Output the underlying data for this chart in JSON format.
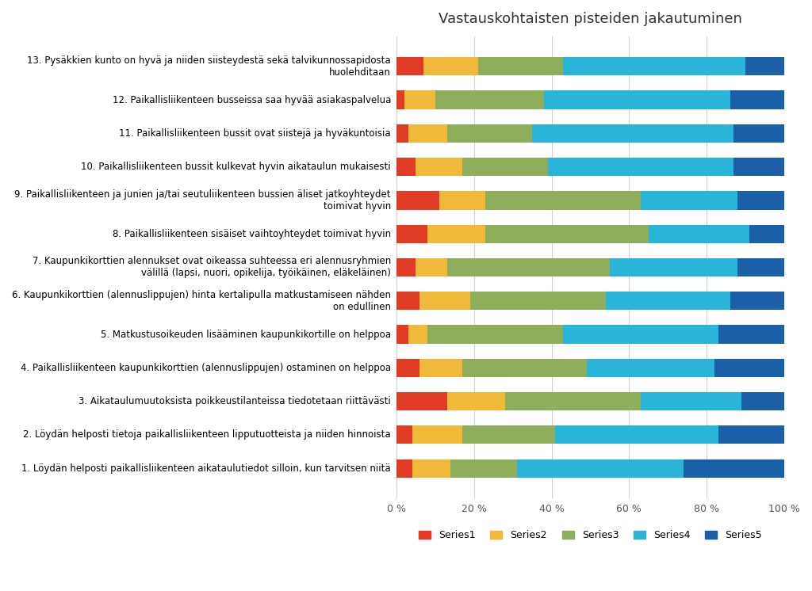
{
  "title": "Vastauskohtaisten pisteiden jakautuminen",
  "categories": [
    "13. Pysäkkien kunto on hyvä ja niiden siisteydestä sekä talvikunnossapidosta\nhuolehditaan",
    "12. Paikallisliikenteen busseissa saa hyvää asiakaspalvelua",
    "11. Paikallisliikenteen bussit ovat siistejä ja hyväkuntoisia",
    "10. Paikallisliikenteen bussit kulkevat hyvin aikataulun mukaisesti",
    "9. Paikallisliikenteen ja junien ja/tai seutuliikenteen bussien äliset jatkoyhteydet\ntoimivat hyvin",
    "8. Paikallisliikenteen sisäiset vaihtoyhteydet toimivat hyvin",
    "7. Kaupunkikorttien alennukset ovat oikeassa suhteessa eri alennusryhmien\nvälillä (lapsi, nuori, opikelija, työikäinen, eläkeläinen)",
    "6. Kaupunkikorttien (alennuslippujen) hinta kertalipulla matkustamiseen nähden\non edullinen",
    "5. Matkustusoikeuden lisääminen kaupunkikortille on helppoa",
    "4. Paikallisliikenteen kaupunkikorttien (alennuslippujen) ostaminen on helppoa",
    "3. Aikataulumuutoksista poikkeustilanteissa tiedotetaan riittävästi",
    "2. Löydän helposti tietoja paikallisliikenteen lipputuotteista ja niiden hinnoista",
    "1. Löydän helposti paikallisliikenteen aikataulutiedot silloin, kun tarvitsen niitä"
  ],
  "series": {
    "Series1": [
      7,
      2,
      3,
      5,
      11,
      8,
      5,
      6,
      3,
      6,
      13,
      4,
      4
    ],
    "Series2": [
      14,
      8,
      10,
      12,
      12,
      15,
      8,
      13,
      5,
      11,
      15,
      13,
      10
    ],
    "Series3": [
      22,
      28,
      22,
      22,
      40,
      42,
      42,
      35,
      35,
      32,
      35,
      24,
      17
    ],
    "Series4": [
      47,
      48,
      52,
      48,
      25,
      26,
      33,
      32,
      40,
      33,
      26,
      42,
      43
    ],
    "Series5": [
      10,
      14,
      13,
      13,
      12,
      9,
      12,
      14,
      17,
      18,
      11,
      17,
      26
    ]
  },
  "colors": {
    "Series1": "#e03b24",
    "Series2": "#f0b93a",
    "Series3": "#8fae5b",
    "Series4": "#29b4d8",
    "Series5": "#1a5fa8"
  },
  "background_color": "#ffffff",
  "figsize": [
    10.24,
    7.46
  ],
  "dpi": 100
}
